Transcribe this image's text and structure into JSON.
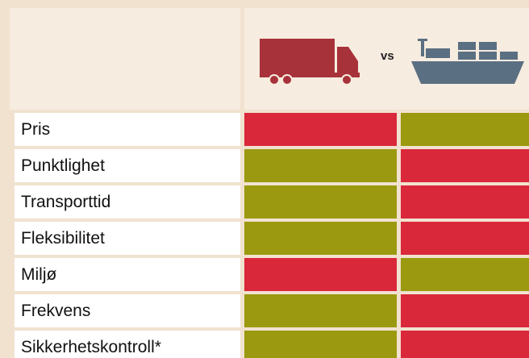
{
  "header": {
    "vs": "vs"
  },
  "table": {
    "rows": [
      {
        "label": "Pris",
        "cells": [
          "#d9283a",
          "#9b990f"
        ]
      },
      {
        "label": "Punktlighet",
        "cells": [
          "#9b990f",
          "#d9283a"
        ]
      },
      {
        "label": "Transporttid",
        "cells": [
          "#9b990f",
          "#d9283a"
        ]
      },
      {
        "label": "Fleksibilitet",
        "cells": [
          "#9b990f",
          "#d9283a"
        ]
      },
      {
        "label": "Miljø",
        "cells": [
          "#d9283a",
          "#9b990f"
        ]
      },
      {
        "label": "Frekvens",
        "cells": [
          "#9b990f",
          "#d9283a"
        ]
      },
      {
        "label": "Sikkerhetskontroll*",
        "cells": [
          "#9b990f",
          "#d9283a"
        ]
      }
    ]
  }
}
